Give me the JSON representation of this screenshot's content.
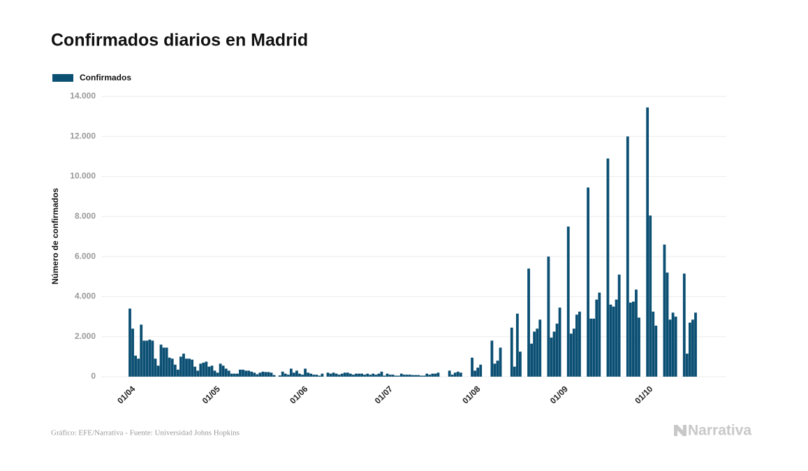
{
  "chart_data": {
    "type": "bar",
    "title": "Confirmados diarios en Madrid",
    "y_label": "Número de confirmados",
    "legend_position": "top-left",
    "grid": true,
    "ylim": [
      0,
      14000
    ],
    "yticks": [
      0,
      {
        "value": 2000,
        "label": "2.000"
      },
      {
        "value": 4000,
        "label": "4.000"
      },
      {
        "value": 6000,
        "label": "6.000"
      },
      {
        "value": 8000,
        "label": "8.000"
      },
      {
        "value": 10000,
        "label": "10.000"
      },
      {
        "value": 12000,
        "label": "12.000"
      },
      {
        "value": 14000,
        "label": "14.000"
      }
    ],
    "categories": [
      "01/04",
      null,
      null,
      null,
      null,
      null,
      null,
      null,
      null,
      null,
      null,
      null,
      null,
      null,
      null,
      null,
      null,
      null,
      null,
      null,
      null,
      null,
      null,
      null,
      null,
      null,
      null,
      null,
      null,
      null,
      "01/05",
      null,
      null,
      null,
      null,
      null,
      null,
      null,
      null,
      null,
      null,
      null,
      null,
      null,
      null,
      null,
      null,
      null,
      null,
      null,
      null,
      null,
      null,
      null,
      null,
      null,
      null,
      null,
      null,
      null,
      null,
      "01/06",
      null,
      null,
      null,
      null,
      null,
      null,
      null,
      null,
      null,
      null,
      null,
      null,
      null,
      null,
      null,
      null,
      null,
      null,
      null,
      null,
      null,
      null,
      null,
      null,
      null,
      null,
      null,
      null,
      null,
      "01/07",
      null,
      null,
      null,
      null,
      null,
      null,
      null,
      null,
      null,
      null,
      null,
      null,
      null,
      null,
      null,
      null,
      null,
      null,
      null,
      null,
      null,
      null,
      null,
      null,
      null,
      null,
      null,
      null,
      null,
      null,
      "01/08",
      null,
      null,
      null,
      null,
      null,
      null,
      null,
      null,
      null,
      null,
      null,
      null,
      null,
      null,
      null,
      null,
      null,
      null,
      null,
      null,
      null,
      null,
      null,
      null,
      null,
      null,
      null,
      null,
      null,
      null,
      "01/09",
      null,
      null,
      null,
      null,
      null,
      null,
      null,
      null,
      null,
      null,
      null,
      null,
      null,
      null,
      null,
      null,
      null,
      null,
      null,
      null,
      null,
      null,
      null,
      null,
      null,
      null,
      null,
      null,
      null,
      "01/10",
      null,
      null,
      null,
      null,
      null,
      null,
      null,
      null,
      null,
      null,
      null,
      null,
      null,
      null,
      null,
      null,
      null
    ],
    "series": [
      {
        "name": "Confirmados",
        "color": "#0b4f73",
        "values": [
          3400,
          2400,
          1050,
          900,
          2600,
          1800,
          1800,
          1850,
          1800,
          900,
          550,
          1600,
          1450,
          1450,
          950,
          900,
          600,
          350,
          1000,
          1150,
          900,
          900,
          850,
          500,
          300,
          650,
          700,
          750,
          500,
          550,
          300,
          200,
          650,
          550,
          400,
          300,
          150,
          150,
          150,
          350,
          350,
          300,
          300,
          250,
          200,
          120,
          200,
          250,
          230,
          230,
          200,
          80,
          0,
          60,
          250,
          150,
          100,
          400,
          200,
          300,
          150,
          100,
          400,
          200,
          150,
          100,
          100,
          50,
          150,
          0,
          200,
          150,
          200,
          150,
          100,
          150,
          200,
          200,
          150,
          100,
          150,
          150,
          150,
          100,
          150,
          100,
          150,
          100,
          150,
          250,
          50,
          150,
          100,
          100,
          50,
          50,
          150,
          100,
          100,
          100,
          80,
          80,
          80,
          50,
          50,
          150,
          100,
          150,
          150,
          200,
          0,
          0,
          0,
          300,
          100,
          200,
          250,
          200,
          0,
          0,
          0,
          950,
          300,
          450,
          600,
          0,
          0,
          0,
          1800,
          650,
          800,
          1450,
          0,
          0,
          0,
          2450,
          500,
          3150,
          1250,
          0,
          0,
          5400,
          1650,
          2250,
          2400,
          2850,
          0,
          0,
          6000,
          1950,
          2250,
          2650,
          3450,
          0,
          0,
          7500,
          2150,
          2400,
          3100,
          3250,
          0,
          0,
          9450,
          2900,
          2900,
          3850,
          4200,
          0,
          0,
          10900,
          3600,
          3500,
          3850,
          5100,
          0,
          0,
          12000,
          3700,
          3750,
          4350,
          2950,
          0,
          0,
          13450,
          8050,
          3250,
          2550,
          0,
          0,
          6600,
          5200,
          2850,
          3200,
          3000,
          0,
          0,
          5150,
          1150,
          2700,
          2850,
          3200
        ]
      }
    ]
  },
  "footer": {
    "source": "Gráfico: EFE/Narrativa - Fuente: Universidad Johns Hopkins",
    "logo": "Narrativa"
  }
}
